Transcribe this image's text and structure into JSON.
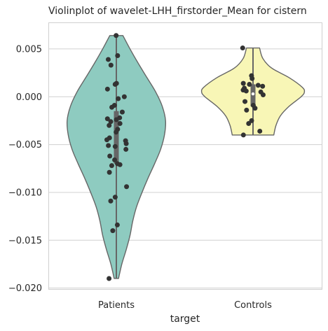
{
  "chart_data": {
    "type": "violin",
    "title": "Violinplot of wavelet-LHH_firstorder_Mean for cistern",
    "xlabel": "target",
    "ylabel": "",
    "categories": [
      "Patients",
      "Controls"
    ],
    "ylim": [
      -0.0201,
      0.0077
    ],
    "yticks": [
      -0.02,
      -0.015,
      -0.01,
      -0.005,
      0.0,
      0.005
    ],
    "ytick_labels": [
      "−0.020",
      "−0.015",
      "−0.010",
      "−0.005",
      "0.000",
      "0.005"
    ],
    "grid": true,
    "colors": {
      "Patients": "#8ecbc0",
      "Controls": "#f8f6b6",
      "outline": "#666666",
      "points": "#333333",
      "box": "#666666",
      "grid": "#d0d0d0",
      "frame": "#d0d0d0"
    },
    "violins": [
      {
        "name": "Patients",
        "range": [
          -0.019,
          0.0064
        ],
        "density": [
          [
            -0.019,
            0.04
          ],
          [
            -0.0175,
            0.1
          ],
          [
            -0.016,
            0.18
          ],
          [
            -0.0145,
            0.25
          ],
          [
            -0.013,
            0.3
          ],
          [
            -0.0115,
            0.37
          ],
          [
            -0.01,
            0.47
          ],
          [
            -0.0085,
            0.58
          ],
          [
            -0.007,
            0.7
          ],
          [
            -0.0055,
            0.81
          ],
          [
            -0.004,
            0.88
          ],
          [
            -0.0025,
            0.9
          ],
          [
            -0.001,
            0.84
          ],
          [
            0.0005,
            0.72
          ],
          [
            0.002,
            0.56
          ],
          [
            0.0035,
            0.4
          ],
          [
            0.005,
            0.25
          ],
          [
            0.0064,
            0.12
          ]
        ],
        "box": {
          "q1": -0.007,
          "median": -0.0037,
          "q3": -0.0015,
          "whisker_low": -0.019,
          "whisker_high": 0.0064
        },
        "points": [
          0.0064,
          0.0043,
          0.0039,
          0.0033,
          0.0013,
          0.0014,
          0.0008,
          0.0,
          -0.0002,
          -0.0009,
          -0.0011,
          -0.0016,
          -0.0022,
          -0.0023,
          -0.0024,
          -0.0026,
          -0.0028,
          -0.003,
          -0.0034,
          -0.0037,
          -0.0043,
          -0.0045,
          -0.0046,
          -0.0049,
          -0.0051,
          -0.0052,
          -0.0055,
          -0.0062,
          -0.0066,
          -0.007,
          -0.0071,
          -0.0072,
          -0.0079,
          -0.0094,
          -0.0105,
          -0.0109,
          -0.0134,
          -0.014,
          -0.019
        ]
      },
      {
        "name": "Controls",
        "range": [
          -0.004,
          0.0051
        ],
        "density": [
          [
            -0.004,
            0.38
          ],
          [
            -0.003,
            0.42
          ],
          [
            -0.002,
            0.5
          ],
          [
            -0.001,
            0.66
          ],
          [
            0.0,
            0.88
          ],
          [
            0.0005,
            0.94
          ],
          [
            0.001,
            0.9
          ],
          [
            0.002,
            0.66
          ],
          [
            0.003,
            0.34
          ],
          [
            0.004,
            0.18
          ],
          [
            0.0051,
            0.12
          ]
        ],
        "box": {
          "q1": -0.001,
          "median": 0.0003,
          "q3": 0.0013,
          "whisker_low": -0.004,
          "whisker_high": 0.0051
        },
        "points": [
          0.0051,
          0.0022,
          0.0019,
          0.0014,
          0.0012,
          0.0013,
          0.0011,
          0.0009,
          0.0007,
          0.0006,
          0.0005,
          0.0002,
          -0.0005,
          -0.0009,
          -0.0012,
          -0.0014,
          -0.0025,
          -0.0028,
          -0.0036,
          -0.004
        ]
      }
    ]
  }
}
